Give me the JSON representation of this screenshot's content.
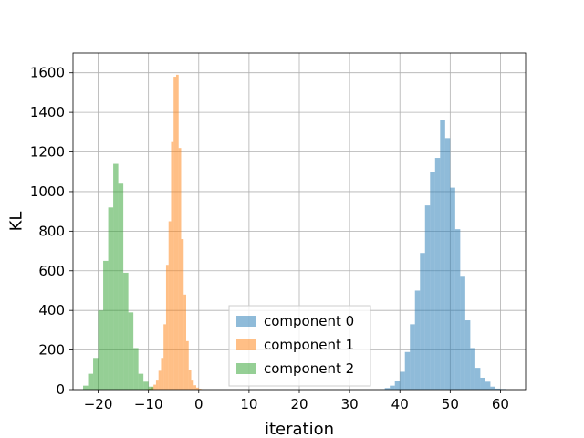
{
  "chart_data": {
    "type": "histogram",
    "xlabel": "iteration",
    "ylabel": "KL",
    "xlim": [
      -25,
      65
    ],
    "ylim": [
      0,
      1700
    ],
    "xticks": [
      -20,
      -10,
      0,
      10,
      20,
      30,
      40,
      50,
      60
    ],
    "xtick_labels": [
      "−20",
      "−10",
      "0",
      "10",
      "20",
      "30",
      "40",
      "50",
      "60"
    ],
    "yticks": [
      0,
      200,
      400,
      600,
      800,
      1000,
      1200,
      1400,
      1600
    ],
    "ytick_labels": [
      "0",
      "200",
      "400",
      "600",
      "800",
      "1000",
      "1200",
      "1400",
      "1600"
    ],
    "grid": true,
    "legend_position": "lower-center",
    "series": [
      {
        "name": "component 0",
        "color": "#1f77b4",
        "alpha": 0.5,
        "bin_width": 1.0,
        "bins": [
          [
            36.5,
            2
          ],
          [
            37.5,
            8
          ],
          [
            38.5,
            20
          ],
          [
            39.5,
            45
          ],
          [
            40.5,
            90
          ],
          [
            41.5,
            190
          ],
          [
            42.5,
            330
          ],
          [
            43.5,
            500
          ],
          [
            44.5,
            690
          ],
          [
            45.5,
            930
          ],
          [
            46.5,
            1100
          ],
          [
            47.5,
            1170
          ],
          [
            48.5,
            1360
          ],
          [
            49.5,
            1270
          ],
          [
            50.5,
            1020
          ],
          [
            51.5,
            810
          ],
          [
            52.5,
            570
          ],
          [
            53.5,
            350
          ],
          [
            54.5,
            210
          ],
          [
            55.5,
            110
          ],
          [
            56.5,
            60
          ],
          [
            57.5,
            40
          ],
          [
            58.5,
            15
          ],
          [
            59.5,
            5
          ],
          [
            60.5,
            3
          ]
        ]
      },
      {
        "name": "component 1",
        "color": "#ff7f0e",
        "alpha": 0.5,
        "bin_width": 0.5,
        "bins": [
          [
            -10.25,
            2
          ],
          [
            -9.75,
            5
          ],
          [
            -9.25,
            12
          ],
          [
            -8.75,
            25
          ],
          [
            -8.25,
            50
          ],
          [
            -7.75,
            95
          ],
          [
            -7.25,
            160
          ],
          [
            -6.75,
            330
          ],
          [
            -6.25,
            630
          ],
          [
            -5.75,
            850
          ],
          [
            -5.25,
            1250
          ],
          [
            -4.75,
            1580
          ],
          [
            -4.25,
            1590
          ],
          [
            -3.75,
            1220
          ],
          [
            -3.25,
            760
          ],
          [
            -2.75,
            480
          ],
          [
            -2.25,
            245
          ],
          [
            -1.75,
            100
          ],
          [
            -1.25,
            50
          ],
          [
            -0.75,
            22
          ],
          [
            -0.25,
            10
          ],
          [
            0.25,
            4
          ],
          [
            0.75,
            2
          ]
        ]
      },
      {
        "name": "component 2",
        "color": "#2ca02c",
        "alpha": 0.5,
        "bin_width": 1.0,
        "bins": [
          [
            -22.5,
            20
          ],
          [
            -21.5,
            80
          ],
          [
            -20.5,
            160
          ],
          [
            -19.5,
            400
          ],
          [
            -18.5,
            650
          ],
          [
            -17.5,
            920
          ],
          [
            -16.5,
            1140
          ],
          [
            -15.5,
            1040
          ],
          [
            -14.5,
            590
          ],
          [
            -13.5,
            390
          ],
          [
            -12.5,
            210
          ],
          [
            -11.5,
            80
          ],
          [
            -10.5,
            40
          ],
          [
            -9.5,
            15
          ]
        ]
      }
    ]
  }
}
